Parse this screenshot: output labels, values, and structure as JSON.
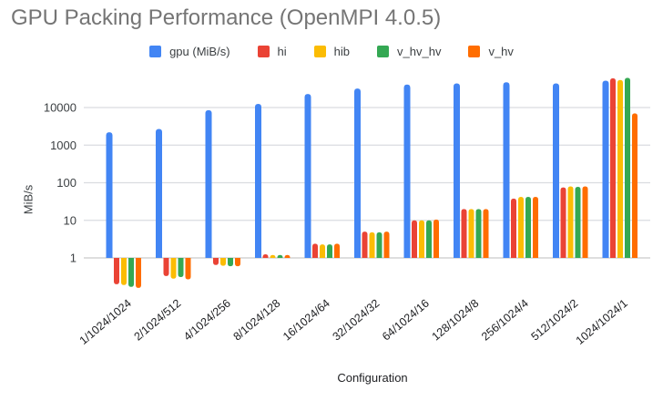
{
  "chart_data": {
    "type": "bar",
    "title": "GPU Packing Performance (OpenMPI 4.0.5)",
    "xlabel": "Configuration",
    "ylabel": "MiB/s",
    "y_scale": "log",
    "y_ticks": [
      1,
      10,
      100,
      1000,
      10000
    ],
    "ylim": [
      0.1,
      100000
    ],
    "grid": "horizontal",
    "legend_position": "top",
    "categories": [
      "1/1024/1024",
      "2/1024/512",
      "4/1024/256",
      "8/1024/128",
      "16/1024/64",
      "32/1024/32",
      "64/1024/16",
      "128/1024/8",
      "256/1024/4",
      "512/1024/2",
      "1024/1024/1"
    ],
    "series": [
      {
        "name": "gpu (MiB/s)",
        "color": "#4285F4",
        "values": [
          2200,
          2700,
          8500,
          12500,
          23000,
          32000,
          41000,
          44000,
          47000,
          44000,
          52000
        ]
      },
      {
        "name": "hi",
        "color": "#EA4335",
        "values": [
          0.2,
          0.33,
          0.65,
          1.25,
          2.4,
          5,
          10,
          20,
          38,
          75,
          60000
        ]
      },
      {
        "name": "hib",
        "color": "#FBBC04",
        "values": [
          0.19,
          0.28,
          0.62,
          1.2,
          2.3,
          4.8,
          10,
          20,
          42,
          80,
          54000
        ]
      },
      {
        "name": "v_hv_hv",
        "color": "#34A853",
        "values": [
          0.17,
          0.31,
          0.6,
          1.2,
          2.3,
          4.8,
          10,
          20,
          42,
          78,
          62000
        ]
      },
      {
        "name": "v_hv",
        "color": "#FF6D00",
        "values": [
          0.16,
          0.27,
          0.6,
          1.2,
          2.4,
          5,
          10.5,
          20,
          42,
          80,
          7000
        ]
      }
    ]
  }
}
